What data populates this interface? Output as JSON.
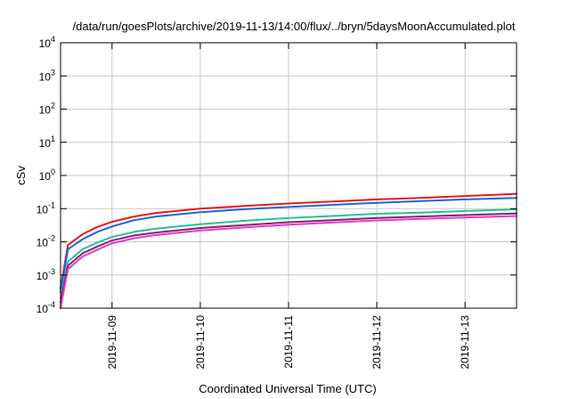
{
  "chart_data": {
    "type": "line",
    "title": "/data/run/goesPlots/archive/2019-11-13/14:00/flux/../bryn/5daysMoonAccumulated.plot",
    "xlabel": "Coordinated Universal Time (UTC)",
    "ylabel": "cSv",
    "yscale": "log",
    "ylim": [
      0.0001,
      10000
    ],
    "xlim": [
      "2019-11-08T10:00",
      "2019-11-13T14:00"
    ],
    "y_ticks": [
      {
        "base": "10",
        "exp": "4"
      },
      {
        "base": "10",
        "exp": "3"
      },
      {
        "base": "10",
        "exp": "2"
      },
      {
        "base": "10",
        "exp": "1"
      },
      {
        "base": "10",
        "exp": "0"
      },
      {
        "base": "10",
        "exp": "-1"
      },
      {
        "base": "10",
        "exp": "-2"
      },
      {
        "base": "10",
        "exp": "-3"
      },
      {
        "base": "10",
        "exp": "-4"
      }
    ],
    "x_ticks": [
      "2019-11-09",
      "2019-11-10",
      "2019-11-11",
      "2019-11-12",
      "2019-11-13"
    ],
    "grid": true,
    "legend": "none",
    "series": [
      {
        "color": "#e8191d",
        "x": [
          "2019-11-08T10:00",
          "2019-11-08T12:00",
          "2019-11-08T16:00",
          "2019-11-08T20:00",
          "2019-11-09T00:00",
          "2019-11-09T06:00",
          "2019-11-09T12:00",
          "2019-11-10T00:00",
          "2019-11-10T12:00",
          "2019-11-11T00:00",
          "2019-11-11T12:00",
          "2019-11-12T00:00",
          "2019-11-12T12:00",
          "2019-11-13T00:00",
          "2019-11-13T14:00"
        ],
        "values": [
          0.0004,
          0.008,
          0.017,
          0.028,
          0.04,
          0.058,
          0.074,
          0.1,
          0.12,
          0.143,
          0.163,
          0.19,
          0.21,
          0.24,
          0.28
        ]
      },
      {
        "color": "#1a66e0",
        "x": [
          "2019-11-08T10:00",
          "2019-11-08T12:00",
          "2019-11-08T16:00",
          "2019-11-08T20:00",
          "2019-11-09T00:00",
          "2019-11-09T06:00",
          "2019-11-09T12:00",
          "2019-11-10T00:00",
          "2019-11-10T12:00",
          "2019-11-11T00:00",
          "2019-11-11T12:00",
          "2019-11-12T00:00",
          "2019-11-12T12:00",
          "2019-11-13T00:00",
          "2019-11-13T14:00"
        ],
        "values": [
          0.0003,
          0.006,
          0.012,
          0.02,
          0.029,
          0.045,
          0.058,
          0.078,
          0.096,
          0.112,
          0.13,
          0.15,
          0.17,
          0.19,
          0.21
        ]
      },
      {
        "color": "#27c29a",
        "x": [
          "2019-11-08T10:00",
          "2019-11-08T12:00",
          "2019-11-08T16:00",
          "2019-11-08T20:00",
          "2019-11-09T00:00",
          "2019-11-09T06:00",
          "2019-11-09T12:00",
          "2019-11-10T00:00",
          "2019-11-10T12:00",
          "2019-11-11T00:00",
          "2019-11-11T12:00",
          "2019-11-12T00:00",
          "2019-11-12T12:00",
          "2019-11-13T00:00",
          "2019-11-13T14:00"
        ],
        "values": [
          0.0002,
          0.0025,
          0.006,
          0.0095,
          0.014,
          0.02,
          0.025,
          0.034,
          0.043,
          0.052,
          0.06,
          0.07,
          0.076,
          0.085,
          0.095
        ]
      },
      {
        "color": "#8a1f6e",
        "x": [
          "2019-11-08T10:00",
          "2019-11-08T12:00",
          "2019-11-08T16:00",
          "2019-11-08T20:00",
          "2019-11-09T00:00",
          "2019-11-09T06:00",
          "2019-11-09T12:00",
          "2019-11-10T00:00",
          "2019-11-10T12:00",
          "2019-11-11T00:00",
          "2019-11-11T12:00",
          "2019-11-12T00:00",
          "2019-11-12T12:00",
          "2019-11-13T00:00",
          "2019-11-13T14:00"
        ],
        "values": [
          0.00015,
          0.0019,
          0.0045,
          0.0072,
          0.011,
          0.0155,
          0.019,
          0.026,
          0.032,
          0.039,
          0.045,
          0.052,
          0.058,
          0.064,
          0.072
        ]
      },
      {
        "color": "#e13ccb",
        "x": [
          "2019-11-08T10:00",
          "2019-11-08T12:00",
          "2019-11-08T16:00",
          "2019-11-08T20:00",
          "2019-11-09T00:00",
          "2019-11-09T06:00",
          "2019-11-09T12:00",
          "2019-11-10T00:00",
          "2019-11-10T12:00",
          "2019-11-11T00:00",
          "2019-11-11T12:00",
          "2019-11-12T00:00",
          "2019-11-12T12:00",
          "2019-11-13T00:00",
          "2019-11-13T14:00"
        ],
        "values": [
          0.0001,
          0.0015,
          0.0036,
          0.0058,
          0.009,
          0.0128,
          0.016,
          0.022,
          0.027,
          0.033,
          0.038,
          0.044,
          0.049,
          0.054,
          0.06
        ]
      }
    ]
  }
}
